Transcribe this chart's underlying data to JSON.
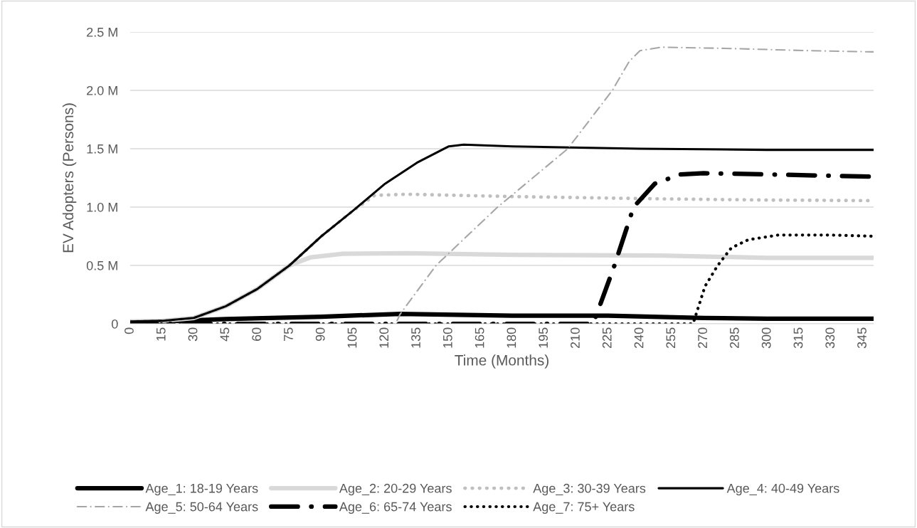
{
  "chart_data": {
    "type": "line",
    "xlabel": "Time (Months)",
    "ylabel": "EV Adopters (Persons)",
    "xlim": [
      0,
      350
    ],
    "xticks": [
      0,
      15,
      30,
      45,
      60,
      75,
      90,
      105,
      120,
      135,
      150,
      165,
      180,
      195,
      210,
      225,
      240,
      255,
      270,
      285,
      300,
      315,
      330,
      345
    ],
    "ylim": [
      0,
      2.5
    ],
    "yticks": [
      0,
      {
        "value": 0.5,
        "label": "0.5 M"
      },
      {
        "value": 1.0,
        "label": "1.0 M"
      },
      {
        "value": 1.5,
        "label": "1.5 M"
      },
      {
        "value": 2.0,
        "label": "2.0 M"
      },
      {
        "value": 2.5,
        "label": "2.5 M"
      }
    ],
    "grid": "y",
    "legend": "bottom",
    "series": [
      {
        "name": "Age_1: 18-19 Years",
        "color": "#000000",
        "line_style": "solid",
        "x": [
          0,
          30,
          45,
          90,
          127,
          180,
          225,
          270,
          300,
          350
        ],
        "values": [
          0.01,
          0.03,
          0.04,
          0.06,
          0.085,
          0.07,
          0.07,
          0.05,
          0.043,
          0.043
        ]
      },
      {
        "name": "Age_2: 20-29 Years",
        "color": "#d9d9d9",
        "line_style": "solid",
        "x": [
          0,
          15,
          30,
          45,
          60,
          75,
          85,
          100,
          130,
          180,
          250,
          300,
          350
        ],
        "values": [
          0.02,
          0.025,
          0.05,
          0.15,
          0.3,
          0.5,
          0.57,
          0.6,
          0.605,
          0.59,
          0.585,
          0.565,
          0.565
        ]
      },
      {
        "name": "Age_3: 30-39 Years",
        "color": "#bfbfbf",
        "line_style": "dotted",
        "x": [
          0,
          15,
          30,
          45,
          60,
          75,
          90,
          105,
          115,
          130,
          180,
          250,
          300,
          350
        ],
        "values": [
          0.02,
          0.025,
          0.05,
          0.15,
          0.3,
          0.5,
          0.75,
          0.97,
          1.1,
          1.11,
          1.09,
          1.07,
          1.06,
          1.055
        ]
      },
      {
        "name": "Age_4: 40-49 Years",
        "color": "#000000",
        "line_style": "solid",
        "x": [
          0,
          15,
          30,
          45,
          60,
          75,
          90,
          105,
          120,
          135,
          150,
          157,
          180,
          240,
          300,
          350
        ],
        "values": [
          0.02,
          0.025,
          0.05,
          0.15,
          0.3,
          0.5,
          0.75,
          0.97,
          1.2,
          1.38,
          1.52,
          1.535,
          1.52,
          1.5,
          1.49,
          1.49
        ]
      },
      {
        "name": "Age_5: 50-64 Years",
        "color": "#a6a6a6",
        "line_style": "dashdot",
        "x": [
          0,
          125,
          127,
          144,
          173,
          206,
          227,
          235,
          240,
          250,
          280,
          320,
          350
        ],
        "values": [
          0,
          0,
          0.08,
          0.5,
          1.0,
          1.5,
          2.0,
          2.25,
          2.34,
          2.37,
          2.36,
          2.34,
          2.33
        ]
      },
      {
        "name": "Age_6: 65-74 Years",
        "color": "#000000",
        "line_style": "dashdot",
        "x": [
          0,
          218,
          228,
          237,
          247,
          259,
          270,
          300,
          350
        ],
        "values": [
          0,
          0,
          0.5,
          1.0,
          1.2,
          1.28,
          1.29,
          1.28,
          1.26
        ]
      },
      {
        "name": "Age_7: 75+ Years",
        "color": "#000000",
        "line_style": "dotted",
        "x": [
          0,
          265,
          270.6,
          276.6,
          283,
          291,
          305,
          330,
          350
        ],
        "values": [
          0,
          0,
          0.32,
          0.5,
          0.65,
          0.72,
          0.76,
          0.76,
          0.75
        ]
      }
    ]
  }
}
